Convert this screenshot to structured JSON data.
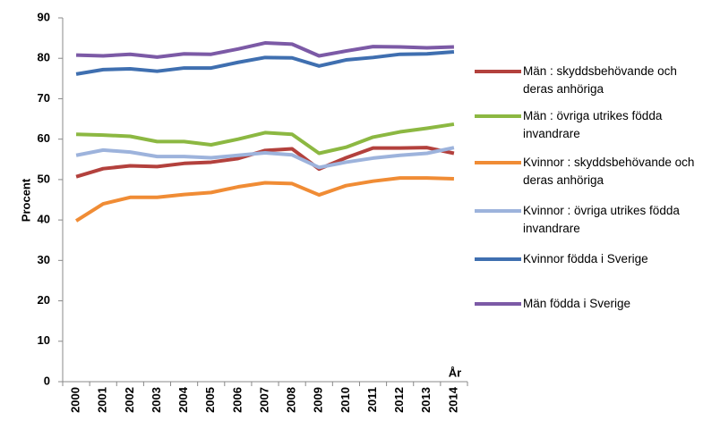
{
  "chart_data": {
    "type": "line",
    "y_label": "Procent",
    "x_label": "År",
    "categories": [
      "2000",
      "2001",
      "2002",
      "2003",
      "2004",
      "2005",
      "2006",
      "2007",
      "2008",
      "2009",
      "2010",
      "2011",
      "2012",
      "2013",
      "2014"
    ],
    "ylim": [
      0,
      90
    ],
    "yticks": [
      0,
      10,
      20,
      30,
      40,
      50,
      60,
      70,
      80,
      90
    ],
    "grid": false,
    "series": [
      {
        "name": "Män : skyddsbehövande och deras anhöriga",
        "color": "#b3413d",
        "values": [
          50.7,
          52.7,
          53.4,
          53.2,
          54.0,
          54.3,
          55.2,
          57.2,
          57.6,
          52.6,
          55.4,
          57.8,
          57.8,
          57.9,
          56.5
        ]
      },
      {
        "name": "Män : övriga utrikes födda invandrare",
        "color": "#8cb842",
        "values": [
          61.2,
          61.0,
          60.7,
          59.4,
          59.4,
          58.6,
          60.0,
          61.6,
          61.2,
          56.5,
          58.0,
          60.5,
          61.8,
          62.7,
          63.7
        ]
      },
      {
        "name": "Kvinnor : skyddsbehövande och deras anhöriga",
        "color": "#f08c35",
        "values": [
          39.8,
          44.0,
          45.6,
          45.6,
          46.3,
          46.8,
          48.2,
          49.2,
          49.0,
          46.2,
          48.5,
          49.6,
          50.4,
          50.4,
          50.2
        ]
      },
      {
        "name": "Kvinnor : övriga utrikes födda invandrare",
        "color": "#9db3dc",
        "values": [
          56.0,
          57.3,
          56.8,
          55.7,
          55.7,
          55.4,
          56.0,
          56.6,
          56.1,
          53.0,
          54.3,
          55.3,
          56.0,
          56.5,
          57.9
        ]
      },
      {
        "name": "Kvinnor födda i Sverige",
        "color": "#3f6fb0",
        "values": [
          76.1,
          77.2,
          77.4,
          76.8,
          77.6,
          77.6,
          79.0,
          80.2,
          80.1,
          78.1,
          79.6,
          80.2,
          81.0,
          81.1,
          81.6
        ]
      },
      {
        "name": "Män födda i Sverige",
        "color": "#7c5aa6",
        "values": [
          80.8,
          80.6,
          81.0,
          80.3,
          81.1,
          81.0,
          82.3,
          83.8,
          83.5,
          80.6,
          81.8,
          82.9,
          82.8,
          82.6,
          82.8
        ]
      }
    ]
  }
}
